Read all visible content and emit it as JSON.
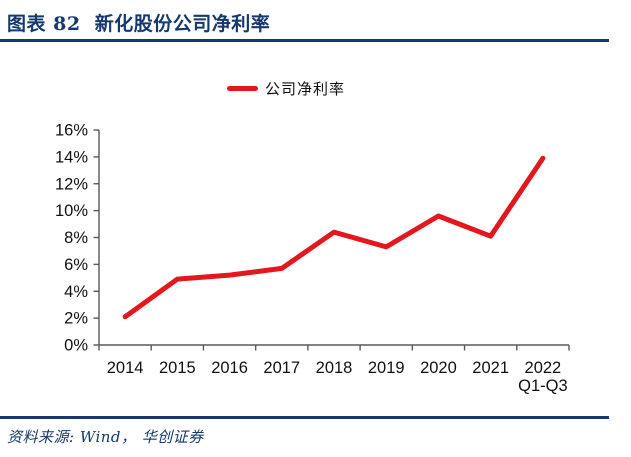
{
  "header": {
    "title": "图表 82  新化股份公司净利率"
  },
  "chart_data": {
    "type": "line",
    "title": "新化股份公司净利率",
    "legend": [
      "公司净利率"
    ],
    "legend_position": "top-center",
    "categories": [
      "2014",
      "2015",
      "2016",
      "2017",
      "2018",
      "2019",
      "2020",
      "2021",
      "2022\nQ1-Q3"
    ],
    "series": [
      {
        "name": "公司净利率",
        "values": [
          2.1,
          4.9,
          5.2,
          5.7,
          8.4,
          7.3,
          9.6,
          8.1,
          13.9
        ]
      }
    ],
    "ylim": [
      0,
      16
    ],
    "ytick_step": 2,
    "ytick_labels": [
      "0%",
      "2%",
      "4%",
      "6%",
      "8%",
      "10%",
      "12%",
      "14%",
      "16%"
    ],
    "grid": false,
    "xlabel": "",
    "ylabel": ""
  },
  "footer": {
    "source": "资料来源: Wind， 华创证券"
  },
  "colors": {
    "navy": "#16396d",
    "series_red": "#e2181e",
    "axis": "#595959",
    "tick_label": "#111111"
  }
}
